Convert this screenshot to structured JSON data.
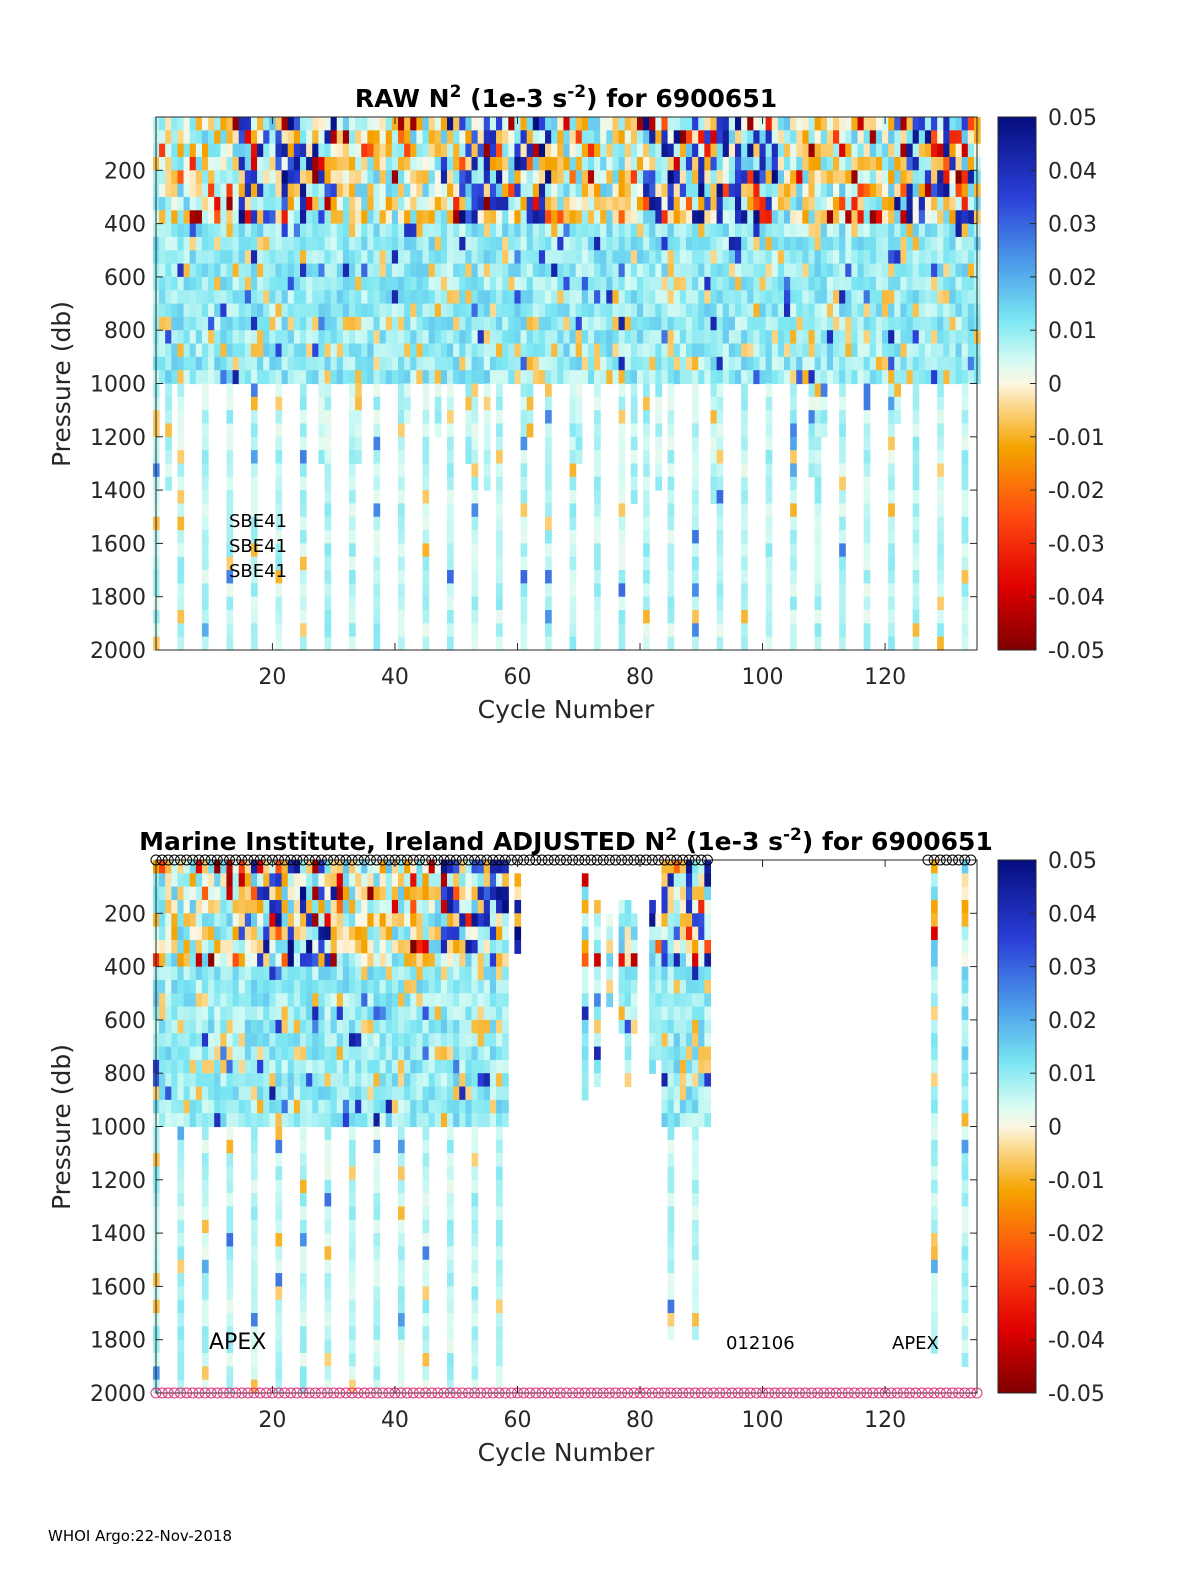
{
  "footer": "WHOI Argo:22-Nov-2018",
  "chart_data": [
    {
      "type": "heatmap",
      "title": "RAW N",
      "title_sup": "2",
      "title_mid": " (1e-3 s",
      "title_sup2": "-2",
      "title_end": ") for 6900651",
      "xlabel": "Cycle Number",
      "ylabel": "Pressure (db)",
      "xlim": [
        1,
        135
      ],
      "ylim": [
        0,
        2000
      ],
      "y_reversed": true,
      "xticks": [
        20,
        40,
        60,
        80,
        100,
        120
      ],
      "yticks": [
        200,
        400,
        600,
        800,
        1000,
        1200,
        1400,
        1600,
        1800,
        2000
      ],
      "colorbar": {
        "range": [
          -0.05,
          0.05
        ],
        "ticks": [
          "0.05",
          "0.04",
          "0.03",
          "0.02",
          "0.01",
          "0",
          "-0.01",
          "-0.02",
          "-0.03",
          "-0.04",
          "-0.05"
        ]
      },
      "annotations": [
        "SBE41",
        "SBE41",
        "SBE41"
      ],
      "profile_max_depth_note": "most profiles to 1000 db; every 4th to 2000 db",
      "deep_profile_cycles": [
        1,
        5,
        9,
        13,
        17,
        21,
        25,
        29,
        33,
        37,
        41,
        45,
        49,
        53,
        57,
        61,
        65,
        69,
        73,
        77,
        81,
        85,
        89,
        93,
        97,
        101,
        105,
        109,
        113,
        117,
        121,
        125,
        129,
        133
      ]
    },
    {
      "type": "heatmap",
      "title": "Marine Institute, Ireland  ADJUSTED N",
      "title_sup": "2",
      "title_mid": " (1e-3 s",
      "title_sup2": "-2",
      "title_end": ") for 6900651",
      "xlabel": "Cycle Number",
      "ylabel": "Pressure (db)",
      "xlim": [
        1,
        135
      ],
      "ylim": [
        0,
        2000
      ],
      "y_reversed": true,
      "xticks": [
        20,
        40,
        60,
        80,
        100,
        120
      ],
      "yticks": [
        200,
        400,
        600,
        800,
        1000,
        1200,
        1400,
        1600,
        1800,
        2000
      ],
      "colorbar": {
        "range": [
          -0.05,
          0.05
        ],
        "ticks": [
          "0.05",
          "0.04",
          "0.03",
          "0.02",
          "0.01",
          "0",
          "-0.01",
          "-0.02",
          "-0.03",
          "-0.04",
          "-0.05"
        ]
      },
      "annotations": [
        "APEX",
        "012106",
        "APEX"
      ],
      "adjusted_dense_cycles": [
        1,
        59
      ],
      "adjusted_partial_cycles": [
        59,
        91
      ],
      "adjusted_end_cycles": [
        128,
        133
      ],
      "top_marker": "o",
      "top_marker_color": "#000000",
      "bottom_marker": "o",
      "bottom_marker_color": "#e0307a"
    }
  ]
}
